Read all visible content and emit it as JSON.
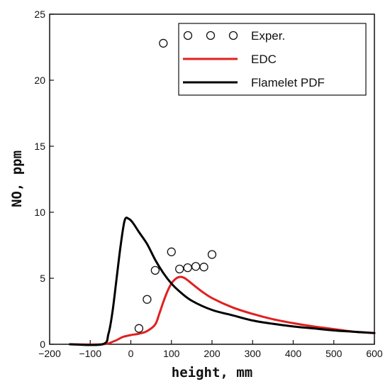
{
  "chart_data": {
    "type": "line",
    "xlabel": "height, mm",
    "ylabel": "NO, ppm",
    "xlim": [
      -200,
      600
    ],
    "ylim": [
      0,
      25
    ],
    "xticks": [
      -200,
      -100,
      0,
      100,
      200,
      300,
      400,
      500,
      600
    ],
    "yticks": [
      0,
      5,
      10,
      15,
      20,
      25
    ],
    "grid": false,
    "legend_position": "top-right",
    "series": [
      {
        "name": "Exper.",
        "kind": "scatter",
        "marker": "open-circle",
        "color": "#111111",
        "x": [
          20,
          40,
          60,
          80,
          100,
          120,
          140,
          160,
          180,
          200
        ],
        "y": [
          1.2,
          3.4,
          5.6,
          22.8,
          7.0,
          5.7,
          5.8,
          5.9,
          5.85,
          6.8
        ]
      },
      {
        "name": "EDC",
        "kind": "line",
        "color": "#e02020",
        "x": [
          -150,
          -70,
          -40,
          -20,
          0,
          20,
          40,
          60,
          70,
          80,
          90,
          100,
          110,
          120,
          130,
          140,
          150,
          175,
          200,
          250,
          300,
          350,
          400,
          450,
          500,
          550,
          600
        ],
        "y": [
          0,
          0,
          0.25,
          0.55,
          0.7,
          0.8,
          1.0,
          1.5,
          2.3,
          3.2,
          4.0,
          4.6,
          4.95,
          5.1,
          5.05,
          4.85,
          4.6,
          4.0,
          3.5,
          2.8,
          2.3,
          1.9,
          1.6,
          1.35,
          1.15,
          0.95,
          0.85
        ]
      },
      {
        "name": "Flamelet PDF",
        "kind": "line",
        "color": "#000000",
        "x": [
          -150,
          -70,
          -55,
          -45,
          -35,
          -25,
          -15,
          -5,
          5,
          20,
          40,
          60,
          80,
          100,
          120,
          150,
          200,
          250,
          300,
          350,
          400,
          450,
          500,
          550,
          600
        ],
        "y": [
          0,
          0,
          0.8,
          2.5,
          5.0,
          7.5,
          9.4,
          9.5,
          9.2,
          8.5,
          7.6,
          6.4,
          5.4,
          4.6,
          4.0,
          3.3,
          2.6,
          2.2,
          1.8,
          1.55,
          1.35,
          1.2,
          1.05,
          0.95,
          0.85
        ]
      }
    ]
  }
}
